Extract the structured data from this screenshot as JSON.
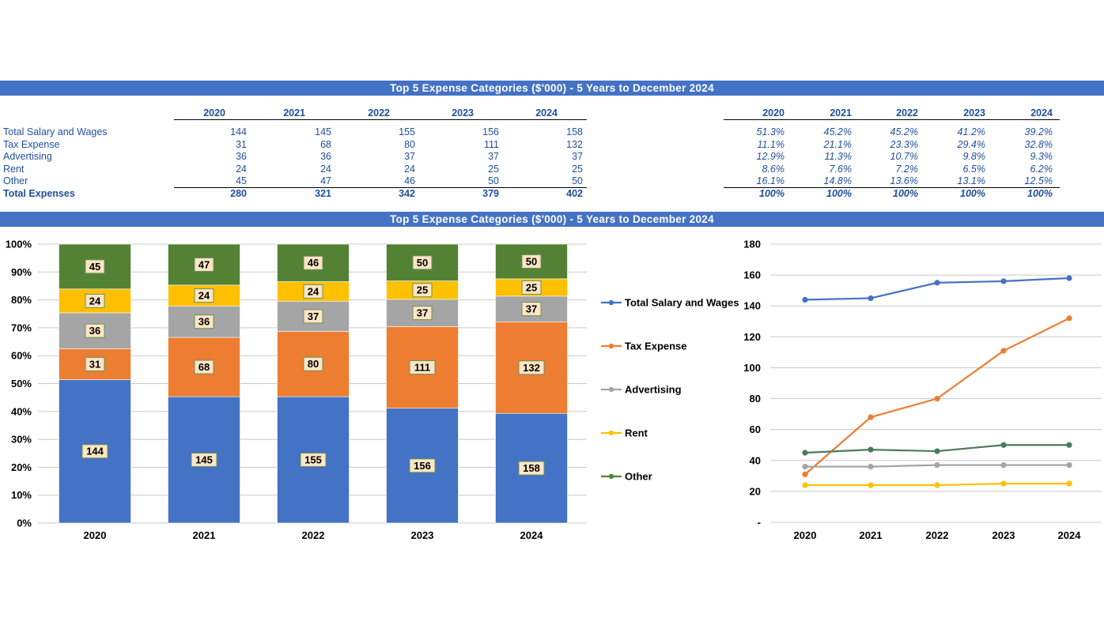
{
  "header": {
    "title": "Top 5 Expense Categories ($'000) - 5 Years to December 2024",
    "title2": "Top 5 Expense Categories ($'000) - 5 Years to December 2024"
  },
  "years": [
    "2020",
    "2021",
    "2022",
    "2023",
    "2024"
  ],
  "values_table": {
    "rows": [
      {
        "label": "Total Salary and Wages",
        "values": [
          "144",
          "145",
          "155",
          "156",
          "158"
        ]
      },
      {
        "label": "Tax Expense",
        "values": [
          "31",
          "68",
          "80",
          "111",
          "132"
        ]
      },
      {
        "label": "Advertising",
        "values": [
          "36",
          "36",
          "37",
          "37",
          "37"
        ]
      },
      {
        "label": "Rent",
        "values": [
          "24",
          "24",
          "24",
          "25",
          "25"
        ]
      },
      {
        "label": "Other",
        "values": [
          "45",
          "47",
          "46",
          "50",
          "50"
        ]
      }
    ],
    "total": {
      "label": "Total Expenses",
      "values": [
        "280",
        "321",
        "342",
        "379",
        "402"
      ]
    }
  },
  "percent_table": {
    "rows": [
      [
        "51.3%",
        "45.2%",
        "45.2%",
        "41.2%",
        "39.2%"
      ],
      [
        "11.1%",
        "21.1%",
        "23.3%",
        "29.4%",
        "32.8%"
      ],
      [
        "12.9%",
        "11.3%",
        "10.7%",
        "9.8%",
        "9.3%"
      ],
      [
        "8.6%",
        "7.6%",
        "7.2%",
        "6.5%",
        "6.2%"
      ],
      [
        "16.1%",
        "14.8%",
        "13.6%",
        "13.1%",
        "12.5%"
      ]
    ],
    "total": [
      "100%",
      "100%",
      "100%",
      "100%",
      "100%"
    ]
  },
  "chart_data": [
    {
      "type": "bar",
      "stacked": "percent",
      "categories": [
        "2020",
        "2021",
        "2022",
        "2023",
        "2024"
      ],
      "series": [
        {
          "name": "Total Salary and Wages",
          "color": "#4472c4",
          "values": [
            144,
            145,
            155,
            156,
            158
          ]
        },
        {
          "name": "Tax Expense",
          "color": "#ed7d31",
          "values": [
            31,
            68,
            80,
            111,
            132
          ]
        },
        {
          "name": "Advertising",
          "color": "#a5a5a5",
          "values": [
            36,
            36,
            37,
            37,
            37
          ]
        },
        {
          "name": "Rent",
          "color": "#ffc000",
          "values": [
            24,
            24,
            24,
            25,
            25
          ]
        },
        {
          "name": "Other",
          "color": "#548235",
          "values": [
            45,
            47,
            46,
            50,
            50
          ]
        }
      ],
      "y_ticks": [
        "0%",
        "10%",
        "20%",
        "30%",
        "40%",
        "50%",
        "60%",
        "70%",
        "80%",
        "90%",
        "100%"
      ],
      "ylim": [
        0,
        100
      ],
      "legend": "right",
      "grid": true
    },
    {
      "type": "line",
      "categories": [
        "2020",
        "2021",
        "2022",
        "2023",
        "2024"
      ],
      "series": [
        {
          "name": "Total Salary and Wages",
          "color": "#4472c4",
          "values": [
            144,
            145,
            155,
            156,
            158
          ]
        },
        {
          "name": "Tax Expense",
          "color": "#ed7d31",
          "values": [
            31,
            68,
            80,
            111,
            132
          ]
        },
        {
          "name": "Advertising",
          "color": "#a5a5a5",
          "values": [
            36,
            36,
            37,
            37,
            37
          ]
        },
        {
          "name": "Rent",
          "color": "#ffc000",
          "values": [
            24,
            24,
            24,
            25,
            25
          ]
        },
        {
          "name": "Other",
          "color": "#4a7c59",
          "values": [
            45,
            47,
            46,
            50,
            50
          ]
        }
      ],
      "y_ticks": [
        "-",
        "20",
        "40",
        "60",
        "80",
        "100",
        "120",
        "140",
        "160",
        "180"
      ],
      "ylim": [
        0,
        180
      ],
      "grid": true
    }
  ]
}
